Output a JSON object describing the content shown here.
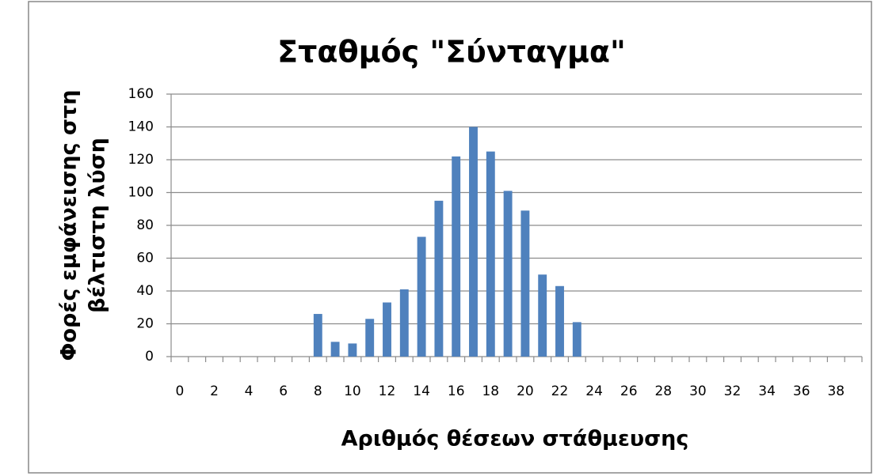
{
  "chart_data": {
    "type": "bar",
    "title": "Σταθμός \"Σύνταγμα\"",
    "x_label": "Αριθμός θέσεων στάθμευσης",
    "y_label": [
      "Φορές εμφάνεισης στη",
      "βέλτιστη λύση"
    ],
    "categories": [
      "0",
      null,
      "2",
      null,
      "4",
      null,
      "6",
      null,
      "8",
      null,
      "10",
      null,
      "12",
      null,
      "14",
      null,
      "16",
      null,
      "18",
      null,
      "20",
      null,
      "22",
      null,
      "24",
      null,
      "26",
      null,
      "28",
      null,
      "30",
      null,
      "32",
      null,
      "34",
      null,
      "36",
      null,
      "38",
      null
    ],
    "values": [
      0,
      0,
      0,
      0,
      0,
      0,
      0,
      0,
      26,
      9,
      8,
      23,
      33,
      41,
      73,
      95,
      122,
      140,
      125,
      101,
      89,
      50,
      43,
      21,
      0,
      0,
      0,
      0,
      0,
      0,
      0,
      0,
      0,
      0,
      0,
      0,
      0,
      0,
      0,
      0
    ],
    "color": "#4f81bd",
    "ylim": [
      0,
      160
    ],
    "yticks": [
      0,
      20,
      40,
      60,
      80,
      100,
      120,
      140,
      160
    ],
    "grid": true
  }
}
